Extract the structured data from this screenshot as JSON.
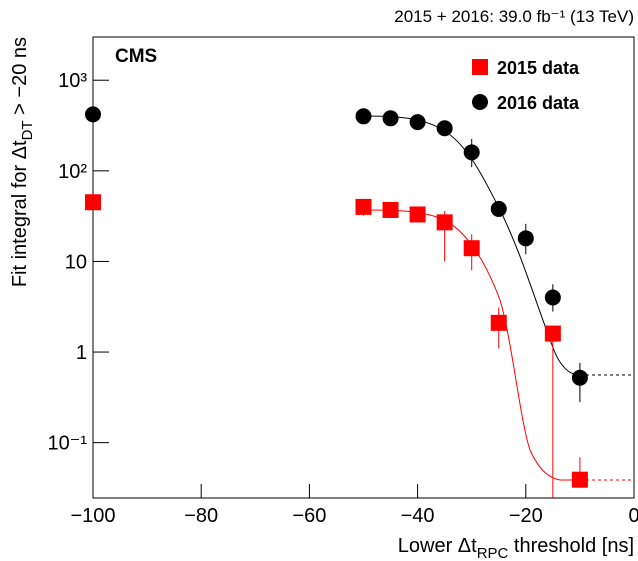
{
  "chart_data": {
    "type": "scatter",
    "title": "2015 + 2016: 39.0 fb⁻¹ (13 TeV)",
    "experiment": "CMS",
    "x_label": [
      "Lower Δt",
      "RPC",
      " threshold [ns]"
    ],
    "y_label": [
      "Fit integral for Δt",
      "DT",
      " > −20 ns"
    ],
    "xlim": [
      -100,
      0
    ],
    "xticks": [
      {
        "value": -100,
        "label": "−100"
      },
      {
        "value": -80,
        "label": "−80"
      },
      {
        "value": -60,
        "label": "−60"
      },
      {
        "value": -40,
        "label": "−40"
      },
      {
        "value": -20,
        "label": "−20"
      },
      0
    ],
    "ylim": [
      0.0245,
      3000
    ],
    "log_y": true,
    "yticks": [
      {
        "value": 0.1,
        "label": "10⁻¹"
      },
      1,
      10,
      {
        "value": 100,
        "label": "10²"
      },
      {
        "value": 1000,
        "label": "10³"
      }
    ],
    "series": [
      {
        "name": "2015 data",
        "color": "#ff0000",
        "marker": "square",
        "x": [
          -100,
          -50,
          -45,
          -40,
          -35,
          -30,
          -25,
          -15,
          -10
        ],
        "values": [
          45,
          40,
          37,
          33,
          27,
          14,
          2.1,
          1.6,
          0.039
        ],
        "errors": [
          [
            5,
            5
          ],
          [
            8,
            8
          ],
          [
            6,
            6
          ],
          [
            5,
            5
          ],
          [
            17,
            9
          ],
          [
            6,
            6
          ],
          [
            1.0,
            1.0
          ],
          [
            1.6,
            0.3
          ],
          [
            0,
            0.03
          ]
        ]
      },
      {
        "name": "2016 data",
        "color": "#000000",
        "marker": "circle",
        "x": [
          -100,
          -50,
          -45,
          -40,
          -35,
          -30,
          -25,
          -20,
          -15,
          -10
        ],
        "values": [
          420,
          400,
          380,
          345,
          295,
          160,
          38,
          18,
          4,
          0.52
        ],
        "errors": [
          [
            20,
            20
          ],
          [
            20,
            20
          ],
          [
            20,
            20
          ],
          [
            20,
            20
          ],
          [
            20,
            20
          ],
          [
            50,
            65
          ],
          [
            5,
            5
          ],
          [
            6,
            8
          ],
          [
            1.2,
            1.6
          ],
          [
            0.24,
            0.24
          ]
        ]
      }
    ]
  }
}
